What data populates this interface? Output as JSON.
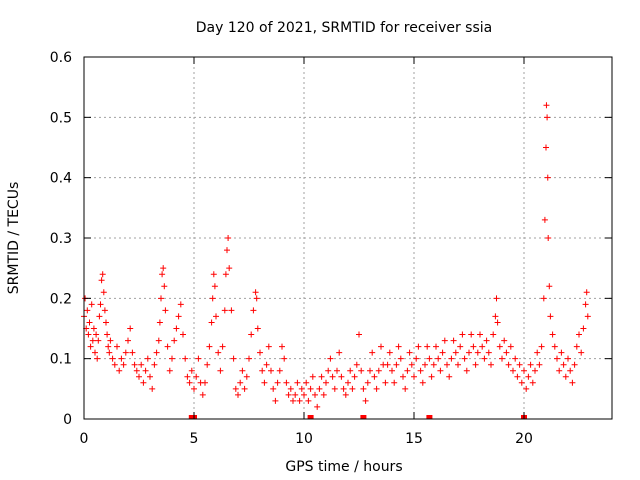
{
  "chart_data": {
    "type": "scatter",
    "title": "Day 120 of 2021, SRMTID for receiver ssia",
    "xlabel": "GPS time / hours",
    "ylabel": "SRMTID / TECUs",
    "xlim": [
      0,
      24
    ],
    "ylim": [
      0,
      0.6
    ],
    "xticks": [
      0,
      5,
      10,
      15,
      20
    ],
    "yticks": [
      0,
      0.1,
      0.2,
      0.3,
      0.4,
      0.5,
      0.6
    ],
    "grid": true,
    "marker": "+",
    "color": "#ff0000",
    "series": [
      {
        "name": "SRMTID",
        "points": [
          [
            0.0,
            0.17
          ],
          [
            0.05,
            0.2
          ],
          [
            0.1,
            0.15
          ],
          [
            0.15,
            0.18
          ],
          [
            0.2,
            0.14
          ],
          [
            0.25,
            0.16
          ],
          [
            0.3,
            0.12
          ],
          [
            0.35,
            0.19
          ],
          [
            0.4,
            0.13
          ],
          [
            0.45,
            0.15
          ],
          [
            0.5,
            0.11
          ],
          [
            0.55,
            0.14
          ],
          [
            0.6,
            0.1
          ],
          [
            0.65,
            0.13
          ],
          [
            0.7,
            0.17
          ],
          [
            0.75,
            0.19
          ],
          [
            0.8,
            0.23
          ],
          [
            0.85,
            0.24
          ],
          [
            0.9,
            0.21
          ],
          [
            0.95,
            0.18
          ],
          [
            1.0,
            0.16
          ],
          [
            1.05,
            0.14
          ],
          [
            1.1,
            0.12
          ],
          [
            1.15,
            0.11
          ],
          [
            1.2,
            0.13
          ],
          [
            1.3,
            0.1
          ],
          [
            1.4,
            0.09
          ],
          [
            1.5,
            0.12
          ],
          [
            1.6,
            0.08
          ],
          [
            1.7,
            0.1
          ],
          [
            1.8,
            0.09
          ],
          [
            1.9,
            0.11
          ],
          [
            2.0,
            0.13
          ],
          [
            2.1,
            0.15
          ],
          [
            2.2,
            0.11
          ],
          [
            2.3,
            0.09
          ],
          [
            2.4,
            0.08
          ],
          [
            2.5,
            0.07
          ],
          [
            2.6,
            0.09
          ],
          [
            2.7,
            0.06
          ],
          [
            2.8,
            0.08
          ],
          [
            2.9,
            0.1
          ],
          [
            3.0,
            0.07
          ],
          [
            3.1,
            0.05
          ],
          [
            3.2,
            0.09
          ],
          [
            3.3,
            0.11
          ],
          [
            3.4,
            0.13
          ],
          [
            3.45,
            0.16
          ],
          [
            3.5,
            0.2
          ],
          [
            3.55,
            0.24
          ],
          [
            3.6,
            0.25
          ],
          [
            3.65,
            0.22
          ],
          [
            3.7,
            0.18
          ],
          [
            3.8,
            0.12
          ],
          [
            3.9,
            0.08
          ],
          [
            4.0,
            0.1
          ],
          [
            4.1,
            0.13
          ],
          [
            4.2,
            0.15
          ],
          [
            4.3,
            0.17
          ],
          [
            4.4,
            0.19
          ],
          [
            4.5,
            0.14
          ],
          [
            4.6,
            0.1
          ],
          [
            4.7,
            0.07
          ],
          [
            4.8,
            0.06
          ],
          [
            4.9,
            0.08
          ],
          [
            5.0,
            0.05
          ],
          [
            5.1,
            0.07
          ],
          [
            5.2,
            0.1
          ],
          [
            5.3,
            0.06
          ],
          [
            5.4,
            0.04
          ],
          [
            5.5,
            0.06
          ],
          [
            5.6,
            0.09
          ],
          [
            5.7,
            0.12
          ],
          [
            5.8,
            0.16
          ],
          [
            5.85,
            0.2
          ],
          [
            5.9,
            0.24
          ],
          [
            5.95,
            0.22
          ],
          [
            6.0,
            0.17
          ],
          [
            6.1,
            0.11
          ],
          [
            6.2,
            0.08
          ],
          [
            6.3,
            0.12
          ],
          [
            6.4,
            0.18
          ],
          [
            6.45,
            0.24
          ],
          [
            6.5,
            0.28
          ],
          [
            6.55,
            0.3
          ],
          [
            6.6,
            0.25
          ],
          [
            6.7,
            0.18
          ],
          [
            6.8,
            0.1
          ],
          [
            6.9,
            0.05
          ],
          [
            7.0,
            0.04
          ],
          [
            7.1,
            0.06
          ],
          [
            7.2,
            0.08
          ],
          [
            7.3,
            0.05
          ],
          [
            7.4,
            0.07
          ],
          [
            7.5,
            0.1
          ],
          [
            7.6,
            0.14
          ],
          [
            7.7,
            0.18
          ],
          [
            7.8,
            0.21
          ],
          [
            7.85,
            0.2
          ],
          [
            7.9,
            0.15
          ],
          [
            8.0,
            0.11
          ],
          [
            8.1,
            0.08
          ],
          [
            8.2,
            0.06
          ],
          [
            8.3,
            0.09
          ],
          [
            8.4,
            0.12
          ],
          [
            8.5,
            0.08
          ],
          [
            8.6,
            0.05
          ],
          [
            8.7,
            0.03
          ],
          [
            8.8,
            0.06
          ],
          [
            8.9,
            0.08
          ],
          [
            9.0,
            0.12
          ],
          [
            9.1,
            0.1
          ],
          [
            9.2,
            0.06
          ],
          [
            9.3,
            0.04
          ],
          [
            9.4,
            0.05
          ],
          [
            9.5,
            0.03
          ],
          [
            9.6,
            0.04
          ],
          [
            9.7,
            0.06
          ],
          [
            9.8,
            0.03
          ],
          [
            9.9,
            0.05
          ],
          [
            10.0,
            0.04
          ],
          [
            10.1,
            0.06
          ],
          [
            10.2,
            0.03
          ],
          [
            10.3,
            0.05
          ],
          [
            10.4,
            0.07
          ],
          [
            10.5,
            0.04
          ],
          [
            10.6,
            0.02
          ],
          [
            10.7,
            0.05
          ],
          [
            10.8,
            0.07
          ],
          [
            10.9,
            0.04
          ],
          [
            11.0,
            0.06
          ],
          [
            11.1,
            0.08
          ],
          [
            11.2,
            0.1
          ],
          [
            11.3,
            0.07
          ],
          [
            11.4,
            0.05
          ],
          [
            11.5,
            0.08
          ],
          [
            11.6,
            0.11
          ],
          [
            11.7,
            0.07
          ],
          [
            11.8,
            0.05
          ],
          [
            11.9,
            0.04
          ],
          [
            12.0,
            0.06
          ],
          [
            12.1,
            0.08
          ],
          [
            12.2,
            0.05
          ],
          [
            12.3,
            0.07
          ],
          [
            12.4,
            0.09
          ],
          [
            12.5,
            0.14
          ],
          [
            12.6,
            0.08
          ],
          [
            12.7,
            0.05
          ],
          [
            12.8,
            0.03
          ],
          [
            12.9,
            0.06
          ],
          [
            13.0,
            0.08
          ],
          [
            13.1,
            0.11
          ],
          [
            13.2,
            0.07
          ],
          [
            13.3,
            0.05
          ],
          [
            13.4,
            0.08
          ],
          [
            13.5,
            0.12
          ],
          [
            13.6,
            0.09
          ],
          [
            13.7,
            0.06
          ],
          [
            13.8,
            0.09
          ],
          [
            13.9,
            0.11
          ],
          [
            14.0,
            0.08
          ],
          [
            14.1,
            0.06
          ],
          [
            14.2,
            0.09
          ],
          [
            14.3,
            0.12
          ],
          [
            14.4,
            0.1
          ],
          [
            14.5,
            0.07
          ],
          [
            14.6,
            0.05
          ],
          [
            14.7,
            0.08
          ],
          [
            14.8,
            0.11
          ],
          [
            14.9,
            0.09
          ],
          [
            15.0,
            0.07
          ],
          [
            15.1,
            0.1
          ],
          [
            15.2,
            0.12
          ],
          [
            15.3,
            0.08
          ],
          [
            15.4,
            0.06
          ],
          [
            15.5,
            0.09
          ],
          [
            15.6,
            0.12
          ],
          [
            15.7,
            0.1
          ],
          [
            15.8,
            0.07
          ],
          [
            15.9,
            0.09
          ],
          [
            16.0,
            0.12
          ],
          [
            16.1,
            0.1
          ],
          [
            16.2,
            0.08
          ],
          [
            16.3,
            0.11
          ],
          [
            16.4,
            0.13
          ],
          [
            16.5,
            0.09
          ],
          [
            16.6,
            0.07
          ],
          [
            16.7,
            0.1
          ],
          [
            16.8,
            0.13
          ],
          [
            16.9,
            0.11
          ],
          [
            17.0,
            0.09
          ],
          [
            17.1,
            0.12
          ],
          [
            17.2,
            0.14
          ],
          [
            17.3,
            0.1
          ],
          [
            17.4,
            0.08
          ],
          [
            17.5,
            0.11
          ],
          [
            17.6,
            0.14
          ],
          [
            17.7,
            0.12
          ],
          [
            17.8,
            0.09
          ],
          [
            17.9,
            0.11
          ],
          [
            18.0,
            0.14
          ],
          [
            18.1,
            0.12
          ],
          [
            18.2,
            0.1
          ],
          [
            18.3,
            0.13
          ],
          [
            18.4,
            0.11
          ],
          [
            18.5,
            0.09
          ],
          [
            18.6,
            0.14
          ],
          [
            18.7,
            0.17
          ],
          [
            18.75,
            0.2
          ],
          [
            18.8,
            0.16
          ],
          [
            18.9,
            0.12
          ],
          [
            19.0,
            0.1
          ],
          [
            19.1,
            0.13
          ],
          [
            19.2,
            0.11
          ],
          [
            19.3,
            0.09
          ],
          [
            19.4,
            0.12
          ],
          [
            19.5,
            0.08
          ],
          [
            19.6,
            0.1
          ],
          [
            19.7,
            0.07
          ],
          [
            19.8,
            0.09
          ],
          [
            19.9,
            0.06
          ],
          [
            20.0,
            0.08
          ],
          [
            20.1,
            0.05
          ],
          [
            20.2,
            0.07
          ],
          [
            20.3,
            0.09
          ],
          [
            20.4,
            0.06
          ],
          [
            20.5,
            0.08
          ],
          [
            20.6,
            0.11
          ],
          [
            20.7,
            0.09
          ],
          [
            20.8,
            0.12
          ],
          [
            20.9,
            0.2
          ],
          [
            20.95,
            0.33
          ],
          [
            21.0,
            0.45
          ],
          [
            21.02,
            0.52
          ],
          [
            21.05,
            0.5
          ],
          [
            21.08,
            0.4
          ],
          [
            21.1,
            0.3
          ],
          [
            21.15,
            0.22
          ],
          [
            21.2,
            0.17
          ],
          [
            21.3,
            0.14
          ],
          [
            21.4,
            0.12
          ],
          [
            21.5,
            0.1
          ],
          [
            21.6,
            0.08
          ],
          [
            21.7,
            0.11
          ],
          [
            21.8,
            0.09
          ],
          [
            21.9,
            0.07
          ],
          [
            22.0,
            0.1
          ],
          [
            22.1,
            0.08
          ],
          [
            22.2,
            0.06
          ],
          [
            22.3,
            0.09
          ],
          [
            22.4,
            0.12
          ],
          [
            22.5,
            0.14
          ],
          [
            22.6,
            0.11
          ],
          [
            22.7,
            0.15
          ],
          [
            22.8,
            0.19
          ],
          [
            22.85,
            0.21
          ],
          [
            22.9,
            0.17
          ]
        ]
      }
    ],
    "gap_markers_x": [
      4.9,
      5.0,
      10.3,
      12.7,
      15.7,
      20.0
    ]
  }
}
